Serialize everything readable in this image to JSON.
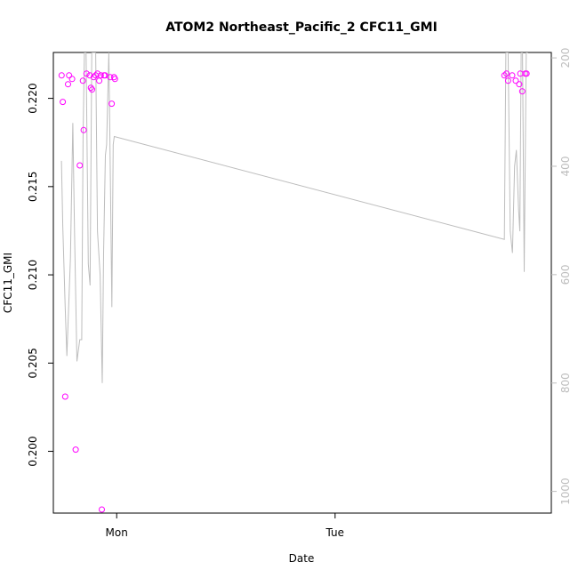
{
  "chart_data": {
    "type": "scatter",
    "title": "ATOM2 Northeast_Pacific_2 CFC11_GMI",
    "xlabel": "Date",
    "ylabel": "CFC11_GMI",
    "x_axis": {
      "unit": "days",
      "range": [
        -0.29,
        1.99
      ],
      "ticks": [
        {
          "value": 0,
          "label": "Mon"
        },
        {
          "value": 1,
          "label": "Tue"
        }
      ]
    },
    "y_axis": {
      "range": [
        0.1965,
        0.2226
      ],
      "ticks": [
        0.2,
        0.205,
        0.21,
        0.215,
        0.22
      ],
      "tick_labels": [
        "0.200",
        "0.205",
        "0.210",
        "0.215",
        "0.220"
      ]
    },
    "y2_axis": {
      "label": "",
      "range": [
        1040,
        190
      ],
      "reversed": true,
      "ticks": [
        200,
        400,
        600,
        800,
        1000
      ],
      "tick_labels": [
        "200",
        "400",
        "600",
        "800",
        "1000"
      ],
      "color": "#bdbdbd"
    },
    "series": [
      {
        "kind": "points",
        "marker": "open-circle",
        "color": "#ff00ff",
        "points": [
          {
            "x": -0.252,
            "y": 0.2213
          },
          {
            "x": -0.247,
            "y": 0.2198
          },
          {
            "x": -0.236,
            "y": 0.2031
          },
          {
            "x": -0.218,
            "y": 0.2213
          },
          {
            "x": -0.223,
            "y": 0.2208
          },
          {
            "x": -0.204,
            "y": 0.2211
          },
          {
            "x": -0.188,
            "y": 0.2001
          },
          {
            "x": -0.169,
            "y": 0.2162
          },
          {
            "x": -0.155,
            "y": 0.221
          },
          {
            "x": -0.151,
            "y": 0.2182
          },
          {
            "x": -0.138,
            "y": 0.2214
          },
          {
            "x": -0.123,
            "y": 0.2213
          },
          {
            "x": -0.118,
            "y": 0.2206
          },
          {
            "x": -0.113,
            "y": 0.2205
          },
          {
            "x": -0.105,
            "y": 0.2212
          },
          {
            "x": -0.096,
            "y": 0.2213
          },
          {
            "x": -0.088,
            "y": 0.2214
          },
          {
            "x": -0.08,
            "y": 0.221
          },
          {
            "x": -0.073,
            "y": 0.2213
          },
          {
            "x": -0.068,
            "y": 0.1967
          },
          {
            "x": -0.058,
            "y": 0.2213
          },
          {
            "x": -0.053,
            "y": 0.2213
          },
          {
            "x": -0.03,
            "y": 0.2212
          },
          {
            "x": -0.023,
            "y": 0.2197
          },
          {
            "x": -0.012,
            "y": 0.2212
          },
          {
            "x": -0.008,
            "y": 0.2211
          },
          {
            "x": 1.775,
            "y": 0.2213
          },
          {
            "x": 1.785,
            "y": 0.2214
          },
          {
            "x": 1.792,
            "y": 0.221
          },
          {
            "x": 1.811,
            "y": 0.2213
          },
          {
            "x": 1.827,
            "y": 0.221
          },
          {
            "x": 1.843,
            "y": 0.2208
          },
          {
            "x": 1.848,
            "y": 0.2214
          },
          {
            "x": 1.857,
            "y": 0.2204
          },
          {
            "x": 1.871,
            "y": 0.2214
          },
          {
            "x": 1.877,
            "y": 0.2214
          }
        ]
      },
      {
        "kind": "line",
        "axis": "y2",
        "color": "#bdbdbd",
        "points": [
          {
            "x": -0.253,
            "y": 390
          },
          {
            "x": -0.247,
            "y": 510
          },
          {
            "x": -0.236,
            "y": 660
          },
          {
            "x": -0.228,
            "y": 750
          },
          {
            "x": -0.212,
            "y": 570
          },
          {
            "x": -0.201,
            "y": 320
          },
          {
            "x": -0.193,
            "y": 520
          },
          {
            "x": -0.182,
            "y": 760
          },
          {
            "x": -0.169,
            "y": 720
          },
          {
            "x": -0.16,
            "y": 720
          },
          {
            "x": -0.154,
            "y": 350
          },
          {
            "x": -0.148,
            "y": 190
          },
          {
            "x": -0.14,
            "y": 190
          },
          {
            "x": -0.13,
            "y": 580
          },
          {
            "x": -0.122,
            "y": 620
          },
          {
            "x": -0.114,
            "y": 190
          },
          {
            "x": -0.096,
            "y": 190
          },
          {
            "x": -0.088,
            "y": 520
          },
          {
            "x": -0.076,
            "y": 600
          },
          {
            "x": -0.066,
            "y": 800
          },
          {
            "x": -0.06,
            "y": 560
          },
          {
            "x": -0.052,
            "y": 380
          },
          {
            "x": -0.046,
            "y": 360
          },
          {
            "x": -0.036,
            "y": 190
          },
          {
            "x": -0.028,
            "y": 460
          },
          {
            "x": -0.022,
            "y": 660
          },
          {
            "x": -0.016,
            "y": 360
          },
          {
            "x": -0.011,
            "y": 345
          },
          {
            "x": 1.775,
            "y": 535
          },
          {
            "x": 1.782,
            "y": 190
          },
          {
            "x": 1.792,
            "y": 190
          },
          {
            "x": 1.802,
            "y": 520
          },
          {
            "x": 1.812,
            "y": 560
          },
          {
            "x": 1.822,
            "y": 400
          },
          {
            "x": 1.83,
            "y": 370
          },
          {
            "x": 1.84,
            "y": 480
          },
          {
            "x": 1.846,
            "y": 520
          },
          {
            "x": 1.852,
            "y": 190
          },
          {
            "x": 1.858,
            "y": 190
          },
          {
            "x": 1.866,
            "y": 595
          },
          {
            "x": 1.875,
            "y": 190
          },
          {
            "x": 1.882,
            "y": 190
          }
        ]
      }
    ],
    "grid": false,
    "legend": "none"
  }
}
